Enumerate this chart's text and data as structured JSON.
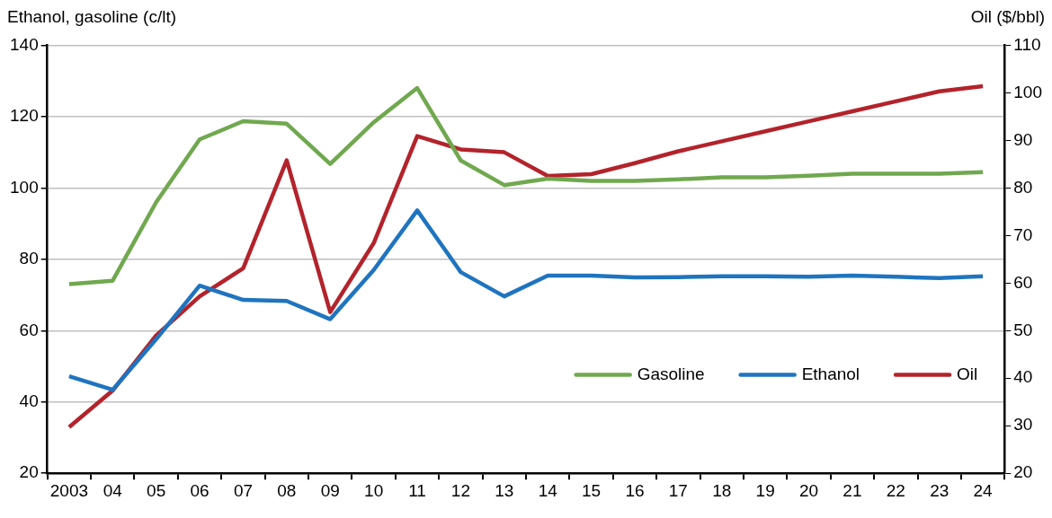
{
  "chart_data": {
    "type": "line",
    "ylabel": "Ethanol, gasoline (c/lt)",
    "y2label": "Oil ($/bbl)",
    "categories": [
      "2003",
      "04",
      "05",
      "06",
      "07",
      "08",
      "09",
      "10",
      "11",
      "12",
      "13",
      "14",
      "15",
      "16",
      "17",
      "18",
      "19",
      "20",
      "21",
      "22",
      "23",
      "24"
    ],
    "series": [
      {
        "name": "Gasoline",
        "color": "#70a84f",
        "values": [
          73,
          74,
          96,
          113.6,
          118.7,
          118,
          106.7,
          118.4,
          128,
          107.7,
          100.8,
          102.6,
          102,
          102,
          102.4,
          103,
          103,
          103.4,
          104,
          104,
          104,
          104.4
        ]
      },
      {
        "name": "Ethanol",
        "color": "#1f74bf",
        "values": [
          47.2,
          43.4,
          57.6,
          72.6,
          68.6,
          68.3,
          63.2,
          77,
          93.7,
          76.4,
          69.6,
          75.4,
          75.4,
          74.9,
          75,
          75.2,
          75.2,
          75.1,
          75.4,
          75.1,
          74.7,
          75.2
        ]
      },
      {
        "name": "Oil",
        "color": "#b3232b",
        "axis": "y2",
        "values": [
          29.7,
          37.4,
          49,
          57.2,
          63.1,
          85.8,
          53.9,
          68.4,
          90.9,
          88.1,
          87.5,
          82.5,
          82.9,
          85.2,
          87.7,
          89.8,
          91.9,
          94,
          96.1,
          98.2,
          100.3,
          101.4
        ]
      }
    ],
    "ylim": [
      20,
      140
    ],
    "yticks": [
      20,
      40,
      60,
      80,
      100,
      120,
      140
    ],
    "y2lim": [
      20,
      110
    ],
    "y2ticks": [
      20,
      30,
      40,
      50,
      60,
      70,
      80,
      90,
      100,
      110
    ],
    "grid": "y",
    "legend": "bottom right",
    "marker": "none",
    "line_style": "solid"
  }
}
